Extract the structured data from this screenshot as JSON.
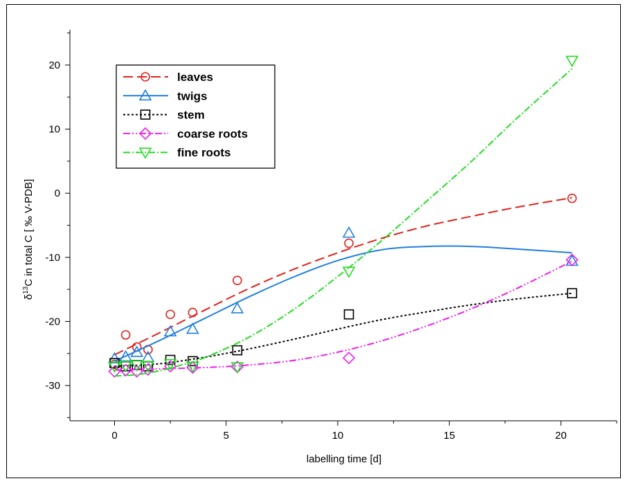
{
  "chart_data": {
    "type": "scatter",
    "title": "",
    "xlabel": "labelling time [d]",
    "ylabel": {
      "prefix": "δ",
      "superscript": "13",
      "suffix": "C in total C [ ‰ V-PDB]"
    },
    "xlim": [
      -2,
      22.5
    ],
    "ylim": [
      -35.5,
      25.5
    ],
    "x_ticks": [
      "0",
      "5",
      "10",
      "15",
      "20"
    ],
    "y_ticks": [
      "-30",
      "-20",
      "-10",
      "0",
      "10",
      "20"
    ],
    "grid": false,
    "legend_position": "top-left",
    "series": [
      {
        "name": "leaves",
        "color": "#e0211b",
        "marker": "circle",
        "line_style": "dashed",
        "points": [
          [
            0,
            -26.7
          ],
          [
            0.5,
            -22.1
          ],
          [
            1.0,
            -24.0
          ],
          [
            1.5,
            -24.4
          ],
          [
            2.5,
            -18.9
          ],
          [
            3.5,
            -18.6
          ],
          [
            5.5,
            -13.6
          ],
          [
            10.5,
            -7.8
          ],
          [
            20.5,
            -0.8
          ]
        ],
        "fit": [
          [
            0,
            -25.2
          ],
          [
            2,
            -21.8
          ],
          [
            4,
            -18.3
          ],
          [
            6,
            -14.9
          ],
          [
            8,
            -11.9
          ],
          [
            10,
            -9.3
          ],
          [
            12,
            -7.0
          ],
          [
            14,
            -5.1
          ],
          [
            16,
            -3.6
          ],
          [
            18,
            -2.2
          ],
          [
            20.5,
            -0.7
          ]
        ]
      },
      {
        "name": "twigs",
        "color": "#1f7fe0",
        "marker": "triangle-up",
        "line_style": "solid",
        "points": [
          [
            0,
            -25.8
          ],
          [
            0.5,
            -25.5
          ],
          [
            1.0,
            -24.8
          ],
          [
            1.5,
            -25.6
          ],
          [
            2.5,
            -21.6
          ],
          [
            3.5,
            -21.2
          ],
          [
            5.5,
            -18.0
          ],
          [
            10.5,
            -6.2
          ],
          [
            20.5,
            -10.6
          ]
        ],
        "fit": [
          [
            0,
            -26.2
          ],
          [
            2,
            -23.0
          ],
          [
            4,
            -19.6
          ],
          [
            6,
            -16.2
          ],
          [
            8,
            -13.1
          ],
          [
            10,
            -10.5
          ],
          [
            12,
            -8.8
          ],
          [
            14,
            -8.3
          ],
          [
            16,
            -8.3
          ],
          [
            18,
            -8.7
          ],
          [
            20.5,
            -9.3
          ]
        ]
      },
      {
        "name": "stem",
        "color": "#000000",
        "marker": "square",
        "line_style": "dotted",
        "points": [
          [
            0,
            -26.5
          ],
          [
            0.5,
            -27.0
          ],
          [
            1.0,
            -26.8
          ],
          [
            1.5,
            -27.0
          ],
          [
            2.5,
            -26.0
          ],
          [
            3.5,
            -26.2
          ],
          [
            5.5,
            -24.5
          ],
          [
            10.5,
            -18.9
          ],
          [
            20.5,
            -15.6
          ]
        ],
        "fit": [
          [
            0,
            -27.0
          ],
          [
            2,
            -26.6
          ],
          [
            4,
            -25.6
          ],
          [
            6,
            -24.3
          ],
          [
            8,
            -22.8
          ],
          [
            10,
            -21.2
          ],
          [
            12,
            -19.7
          ],
          [
            14,
            -18.5
          ],
          [
            16,
            -17.4
          ],
          [
            18,
            -16.5
          ],
          [
            20.5,
            -15.6
          ]
        ]
      },
      {
        "name": "coarse roots",
        "color": "#ee1cee",
        "marker": "diamond",
        "line_style": "dash-dot-dot",
        "points": [
          [
            0,
            -27.8
          ],
          [
            0.5,
            -27.6
          ],
          [
            1.0,
            -27.8
          ],
          [
            1.5,
            -27.5
          ],
          [
            2.5,
            -27.0
          ],
          [
            3.5,
            -27.2
          ],
          [
            5.5,
            -27.1
          ],
          [
            10.5,
            -25.7
          ],
          [
            20.5,
            -10.4
          ]
        ],
        "fit": [
          [
            0,
            -27.6
          ],
          [
            2,
            -27.4
          ],
          [
            4,
            -27.2
          ],
          [
            6,
            -26.8
          ],
          [
            8,
            -26.1
          ],
          [
            10,
            -24.8
          ],
          [
            12,
            -23.0
          ],
          [
            14,
            -20.7
          ],
          [
            16,
            -18.0
          ],
          [
            18,
            -14.9
          ],
          [
            20.5,
            -10.6
          ]
        ]
      },
      {
        "name": "fine roots",
        "color": "#22dd22",
        "marker": "triangle-down",
        "line_style": "dash-dot",
        "points": [
          [
            0,
            -27.0
          ],
          [
            0.5,
            -26.9
          ],
          [
            1.0,
            -26.8
          ],
          [
            1.5,
            -26.9
          ],
          [
            2.5,
            -26.6
          ],
          [
            3.5,
            -27.0
          ],
          [
            5.5,
            -27.1
          ],
          [
            10.5,
            -12.2
          ],
          [
            20.5,
            20.7
          ]
        ],
        "fit": [
          [
            0,
            -28.5
          ],
          [
            1,
            -28.3
          ],
          [
            2,
            -27.7
          ],
          [
            3,
            -26.8
          ],
          [
            4,
            -25.7
          ],
          [
            6,
            -22.5
          ],
          [
            8,
            -18.2
          ],
          [
            10,
            -13.0
          ],
          [
            12,
            -7.3
          ],
          [
            14,
            -1.2
          ],
          [
            16,
            5.0
          ],
          [
            18,
            11.6
          ],
          [
            20.5,
            19.4
          ]
        ]
      }
    ]
  }
}
